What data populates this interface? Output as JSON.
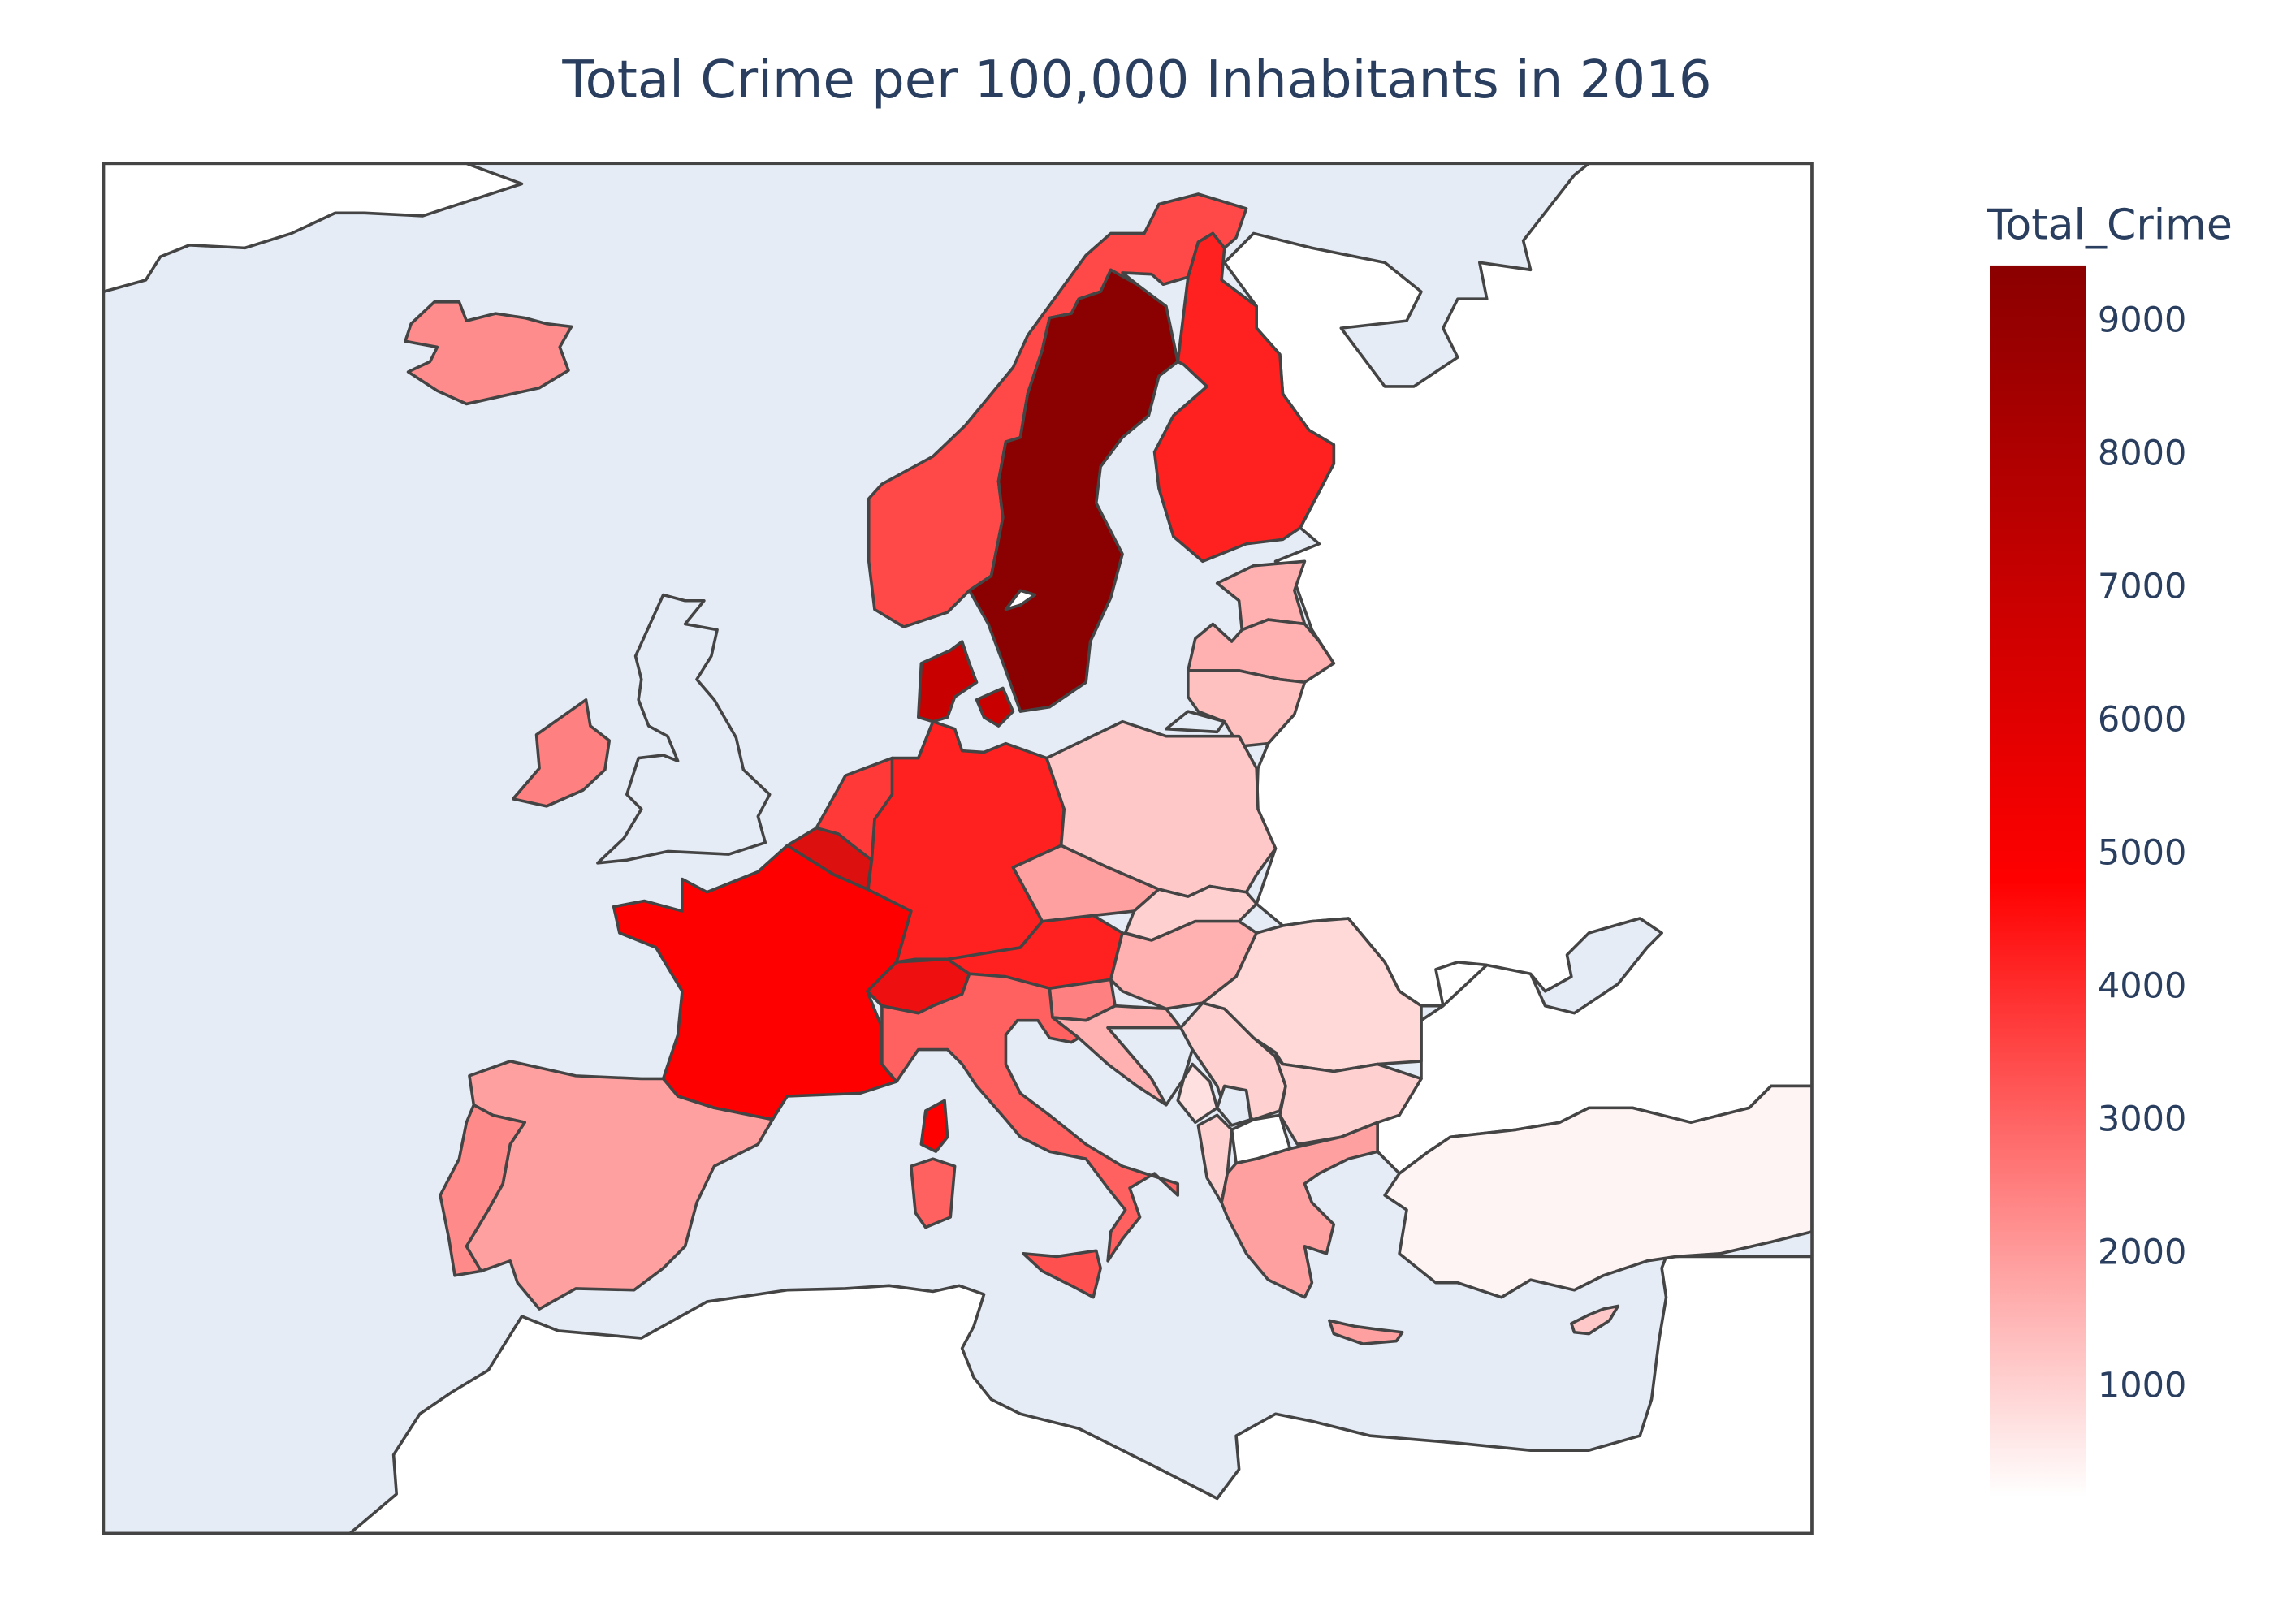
{
  "title": "Total Crime per 100,000 Inhabitants in 2016",
  "colorbar": {
    "title": "Total_Crime",
    "ticks": [
      "9000",
      "8000",
      "7000",
      "6000",
      "5000",
      "4000",
      "3000",
      "2000",
      "1000"
    ],
    "colorscale": [
      "#ffffff",
      "#ff0000",
      "#8b0000"
    ]
  },
  "colors": {
    "ocean": "#e5ecf6",
    "land": "#ffffff",
    "border": "#444444"
  },
  "chart_data": {
    "type": "choropleth",
    "scope": "europe",
    "legend": "right",
    "color_range": [
      150,
      9400
    ]
  }
}
